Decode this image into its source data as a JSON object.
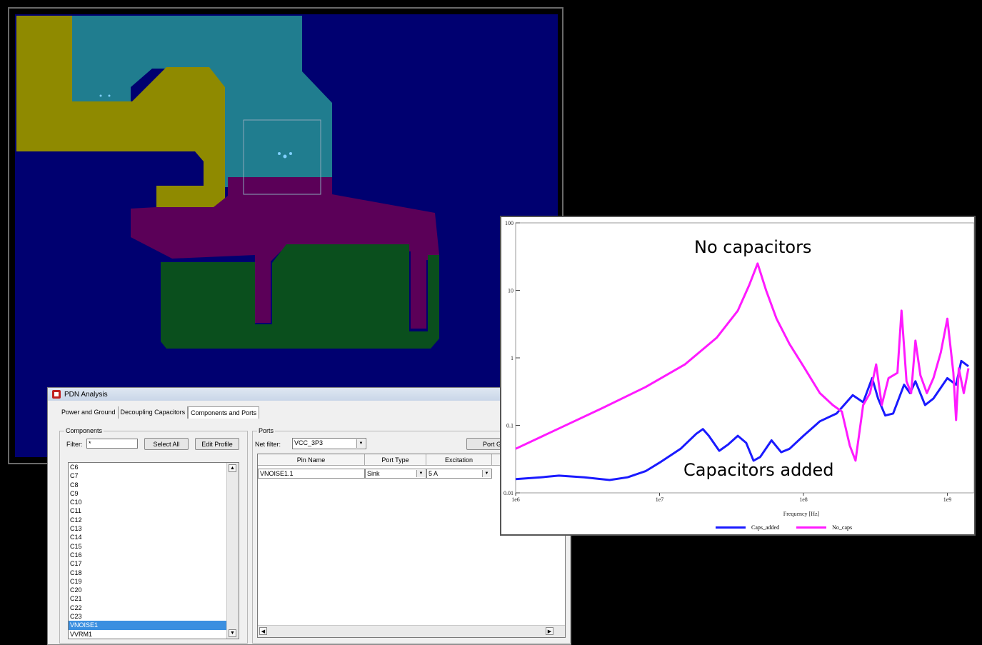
{
  "layout_view": {
    "colors": {
      "background": "#000070",
      "cyan_region": "#207d8f",
      "yellow_region": "#8f8a00",
      "magenta_region": "#5b0058",
      "green_region": "#0a4f1d"
    }
  },
  "dialog": {
    "title": "PDN Analysis",
    "tabs": [
      "Power and Ground",
      "Decoupling Capacitors",
      "Components and Ports"
    ],
    "active_tab": 2,
    "components": {
      "group_label": "Components",
      "filter_label": "Filter:",
      "filter_value": "*",
      "select_all_label": "Select All",
      "edit_profile_label": "Edit Profile",
      "items": [
        "C6",
        "C7",
        "C8",
        "C9",
        "C10",
        "C11",
        "C12",
        "C13",
        "C14",
        "C15",
        "C16",
        "C17",
        "C18",
        "C19",
        "C20",
        "C21",
        "C22",
        "C23",
        "VNOISE1",
        "VVRM1"
      ],
      "selected": "VNOISE1"
    },
    "ports": {
      "group_label": "Ports",
      "net_filter_label": "Net filter:",
      "net_filter_value": "VCC_3P3",
      "port_group_label": "Port Gro",
      "columns": [
        "Pin Name",
        "Port Type",
        "Excitation"
      ],
      "rows": [
        {
          "pin_name": "VNOISE1.1",
          "port_type": "Sink",
          "excitation": "5 A"
        }
      ]
    }
  },
  "chart_data": {
    "type": "line",
    "xlabel": "Frequency [Hz]",
    "ylabel": "",
    "x_scale": "log",
    "y_scale": "log",
    "xlim": [
      1000000,
      1500000000
    ],
    "ylim": [
      0.01,
      100
    ],
    "x_ticks": [
      "1e6",
      "1e7",
      "1e8",
      "1e9"
    ],
    "y_ticks": [
      "100",
      "10",
      "1",
      "0.1",
      "0.01"
    ],
    "legend_position": "bottom",
    "annotations": [
      "No capacitors",
      "Capacitors added"
    ],
    "series": [
      {
        "name": "Caps_added",
        "color": "#1a1aff",
        "points": [
          [
            1000000,
            0.016
          ],
          [
            1500000,
            0.017
          ],
          [
            2000000,
            0.018
          ],
          [
            3000000,
            0.017
          ],
          [
            4500000,
            0.0155
          ],
          [
            6000000,
            0.017
          ],
          [
            8000000,
            0.021
          ],
          [
            10000000,
            0.028
          ],
          [
            14000000,
            0.045
          ],
          [
            18000000,
            0.075
          ],
          [
            20000000,
            0.088
          ],
          [
            22000000,
            0.07
          ],
          [
            26000000,
            0.042
          ],
          [
            30000000,
            0.052
          ],
          [
            35000000,
            0.07
          ],
          [
            40000000,
            0.055
          ],
          [
            45000000,
            0.03
          ],
          [
            50000000,
            0.034
          ],
          [
            60000000,
            0.06
          ],
          [
            70000000,
            0.04
          ],
          [
            80000000,
            0.045
          ],
          [
            100000000,
            0.07
          ],
          [
            130000000,
            0.115
          ],
          [
            170000000,
            0.15
          ],
          [
            220000000,
            0.28
          ],
          [
            260000000,
            0.22
          ],
          [
            300000000,
            0.5
          ],
          [
            330000000,
            0.25
          ],
          [
            370000000,
            0.14
          ],
          [
            420000000,
            0.15
          ],
          [
            500000000,
            0.4
          ],
          [
            550000000,
            0.3
          ],
          [
            600000000,
            0.45
          ],
          [
            700000000,
            0.2
          ],
          [
            800000000,
            0.25
          ],
          [
            1000000000,
            0.5
          ],
          [
            1150000000,
            0.4
          ],
          [
            1250000000,
            0.9
          ],
          [
            1400000000,
            0.75
          ]
        ]
      },
      {
        "name": "No_caps",
        "color": "#ff1aff",
        "points": [
          [
            1000000,
            0.045
          ],
          [
            2000000,
            0.09
          ],
          [
            4000000,
            0.18
          ],
          [
            8000000,
            0.37
          ],
          [
            15000000,
            0.8
          ],
          [
            25000000,
            2.0
          ],
          [
            35000000,
            5.0
          ],
          [
            42000000,
            12
          ],
          [
            48000000,
            25
          ],
          [
            55000000,
            10
          ],
          [
            65000000,
            3.8
          ],
          [
            80000000,
            1.6
          ],
          [
            100000000,
            0.75
          ],
          [
            130000000,
            0.3
          ],
          [
            160000000,
            0.2
          ],
          [
            185000000,
            0.16
          ],
          [
            210000000,
            0.05
          ],
          [
            230000000,
            0.03
          ],
          [
            260000000,
            0.2
          ],
          [
            290000000,
            0.3
          ],
          [
            320000000,
            0.8
          ],
          [
            350000000,
            0.2
          ],
          [
            390000000,
            0.5
          ],
          [
            450000000,
            0.6
          ],
          [
            480000000,
            5
          ],
          [
            520000000,
            0.45
          ],
          [
            560000000,
            0.3
          ],
          [
            600000000,
            1.8
          ],
          [
            650000000,
            0.55
          ],
          [
            720000000,
            0.3
          ],
          [
            800000000,
            0.5
          ],
          [
            900000000,
            1.2
          ],
          [
            1000000000,
            3.8
          ],
          [
            1100000000,
            0.6
          ],
          [
            1150000000,
            0.12
          ],
          [
            1200000000,
            0.7
          ],
          [
            1300000000,
            0.3
          ],
          [
            1400000000,
            0.7
          ]
        ]
      }
    ]
  }
}
